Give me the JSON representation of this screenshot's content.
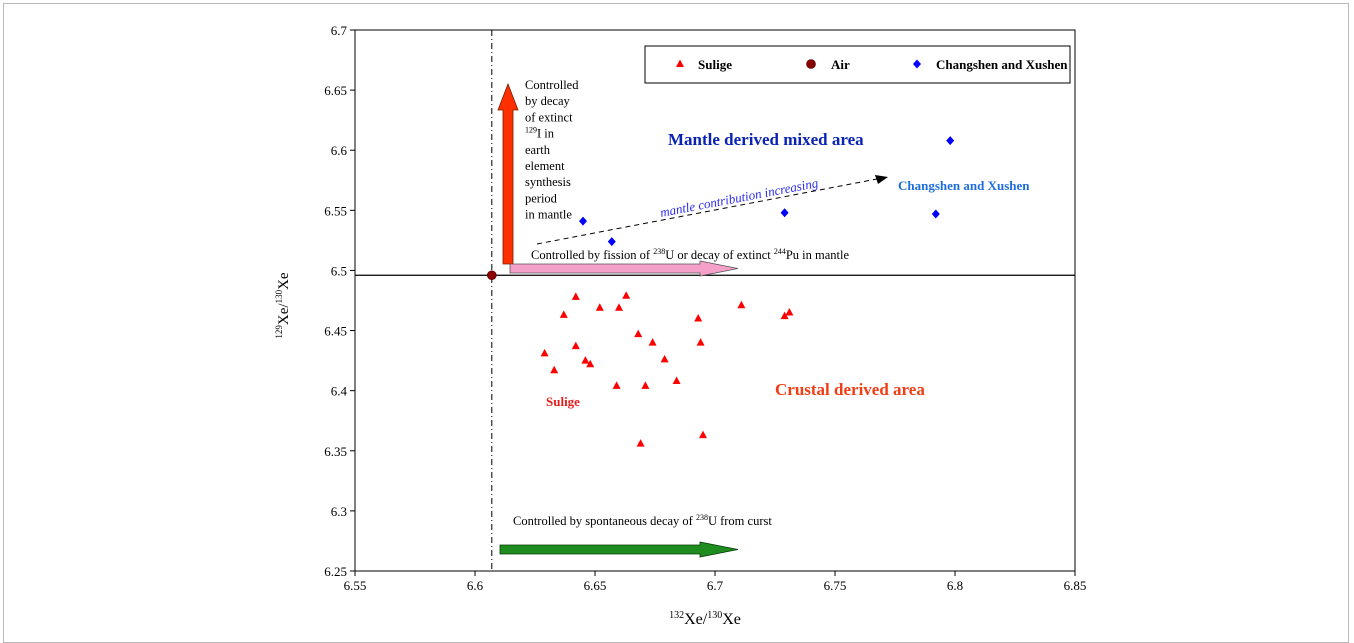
{
  "chart_data": {
    "type": "scatter",
    "xlabel": {
      "sup": "132",
      "main": "Xe/",
      "sup2": "130",
      "main2": "Xe"
    },
    "ylabel": {
      "sup": "129",
      "main": "Xe/",
      "sup2": "130",
      "main2": "Xe"
    },
    "xlim": [
      6.55,
      6.85
    ],
    "ylim": [
      6.25,
      6.7
    ],
    "x_ticks": [
      6.55,
      6.6,
      6.65,
      6.7,
      6.75,
      6.8,
      6.85
    ],
    "x_tick_labels": [
      "6.55",
      "6.6",
      "6.65",
      "6.7",
      "6.75",
      "6.8",
      "6.85"
    ],
    "y_ticks": [
      6.25,
      6.3,
      6.35,
      6.4,
      6.45,
      6.5,
      6.55,
      6.6,
      6.65,
      6.7
    ],
    "y_tick_labels": [
      "6.25",
      "6.3",
      "6.35",
      "6.4",
      "6.45",
      "6.5",
      "6.55",
      "6.6",
      "6.65",
      "6.7"
    ],
    "grid": false,
    "legend_position": "top-right",
    "series": [
      {
        "name": "Sulige",
        "marker": "triangle",
        "color": "#ff0000",
        "points": [
          [
            6.629,
            6.431
          ],
          [
            6.633,
            6.417
          ],
          [
            6.637,
            6.463
          ],
          [
            6.642,
            6.478
          ],
          [
            6.642,
            6.437
          ],
          [
            6.646,
            6.425
          ],
          [
            6.648,
            6.422
          ],
          [
            6.652,
            6.469
          ],
          [
            6.659,
            6.404
          ],
          [
            6.66,
            6.469
          ],
          [
            6.663,
            6.479
          ],
          [
            6.668,
            6.447
          ],
          [
            6.669,
            6.356
          ],
          [
            6.671,
            6.404
          ],
          [
            6.674,
            6.44
          ],
          [
            6.679,
            6.426
          ],
          [
            6.684,
            6.408
          ],
          [
            6.693,
            6.46
          ],
          [
            6.694,
            6.44
          ],
          [
            6.695,
            6.363
          ],
          [
            6.711,
            6.471
          ],
          [
            6.729,
            6.462
          ],
          [
            6.731,
            6.465
          ]
        ]
      },
      {
        "name": "Air",
        "marker": "circle",
        "color": "#8b0000",
        "points": [
          [
            6.607,
            6.496
          ]
        ]
      },
      {
        "name": "Changshen and Xushen",
        "marker": "diamond",
        "color": "#0000ff",
        "points": [
          [
            6.645,
            6.541
          ],
          [
            6.657,
            6.524
          ],
          [
            6.729,
            6.548
          ],
          [
            6.792,
            6.547
          ],
          [
            6.798,
            6.608
          ]
        ]
      }
    ],
    "reference_lines": {
      "vertical_x": 6.607,
      "horizontal_y": 6.496
    },
    "annotations": {
      "mantle_area": "Mantle derived  mixed area",
      "crustal_area": "Crustal derived area",
      "sulige_label": "Sulige",
      "changshen_label": "Changshen and Xushen",
      "trend_label": "mantle contribution increasing",
      "red_arrow_lines": [
        "Controlled",
        "by decay",
        "of extinct"
      ],
      "red_arrow_iodine": {
        "sup": "129",
        "main": "I  in"
      },
      "red_arrow_lines2": [
        "earth",
        "element",
        "synthesis",
        "period",
        "in mantle"
      ],
      "pink_arrow": {
        "t1": "Controlled by  fission of ",
        "sup1": "238",
        "t2": "U or decay  of extinct ",
        "sup2": "244",
        "t3": "Pu in mantle"
      },
      "green_arrow": {
        "t1": "Controlled by spontaneous decay of ",
        "sup1": "238",
        "t2": "U  from curst"
      }
    },
    "colors": {
      "mantle_text": "#0a23b4",
      "crustal_text": "#f23c14",
      "changshen_text": "#1e6edc",
      "sulige_text": "#e61e1e",
      "trend_text": "#2a2af0",
      "red_arrow": "#ff3000",
      "pink_arrow": "#f4a0c8",
      "green_arrow": "#1e8c1e"
    }
  }
}
